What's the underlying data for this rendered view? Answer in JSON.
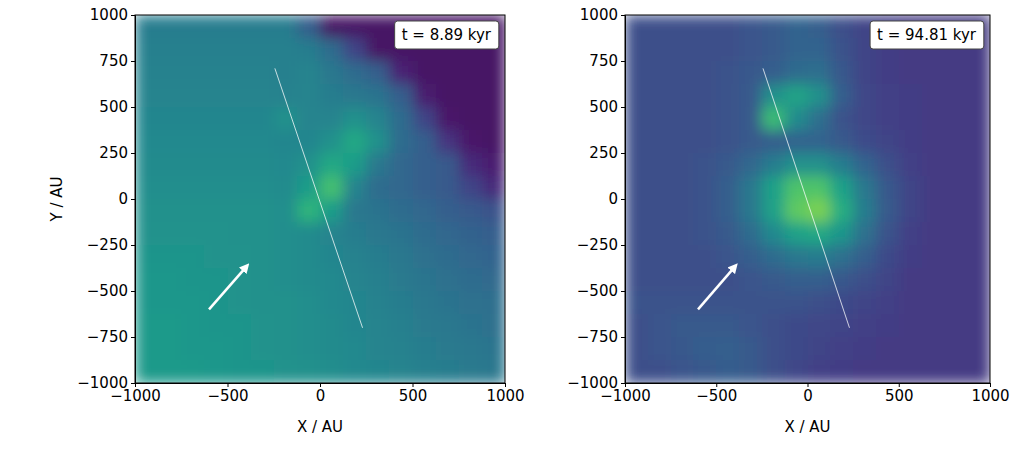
{
  "chart_data": [
    {
      "type": "heatmap",
      "annotation": "t = 8.89 kyr",
      "xlabel": "X / AU",
      "ylabel": "Y / AU",
      "xlim": [
        -1000,
        1000
      ],
      "ylim": [
        -1000,
        1000
      ],
      "xticks": [
        {
          "value": -1000,
          "label": "−1000"
        },
        {
          "value": -500,
          "label": "−500"
        },
        0,
        500,
        1000
      ],
      "yticks": [
        {
          "value": -1000,
          "label": "−1000"
        },
        {
          "value": -750,
          "label": "−750"
        },
        {
          "value": -500,
          "label": "−500"
        },
        {
          "value": -250,
          "label": "−250"
        },
        0,
        250,
        500,
        750,
        1000
      ],
      "x_edges": [
        -1000,
        -875,
        -750,
        -625,
        -500,
        -375,
        -250,
        -125,
        0,
        125,
        250,
        375,
        500,
        625,
        750,
        875,
        1000
      ],
      "y_edges": [
        1000,
        875,
        750,
        625,
        500,
        375,
        250,
        125,
        0,
        -125,
        -250,
        -375,
        -500,
        -625,
        -750,
        -875,
        -1000
      ],
      "zlim": [
        0,
        1
      ],
      "z": [
        [
          0.42,
          0.42,
          0.42,
          0.42,
          0.42,
          0.42,
          0.42,
          0.3,
          0.05,
          0.05,
          0.05,
          0.05,
          0.05,
          0.05,
          0.05,
          0.05
        ],
        [
          0.43,
          0.43,
          0.43,
          0.43,
          0.43,
          0.43,
          0.43,
          0.42,
          0.35,
          0.2,
          0.05,
          0.05,
          0.05,
          0.05,
          0.05,
          0.05
        ],
        [
          0.44,
          0.44,
          0.44,
          0.44,
          0.44,
          0.44,
          0.43,
          0.45,
          0.4,
          0.35,
          0.3,
          0.1,
          0.05,
          0.05,
          0.05,
          0.05
        ],
        [
          0.45,
          0.45,
          0.45,
          0.45,
          0.45,
          0.45,
          0.44,
          0.45,
          0.42,
          0.4,
          0.38,
          0.3,
          0.08,
          0.05,
          0.05,
          0.05
        ],
        [
          0.46,
          0.46,
          0.46,
          0.46,
          0.46,
          0.46,
          0.5,
          0.45,
          0.45,
          0.5,
          0.45,
          0.35,
          0.2,
          0.06,
          0.05,
          0.05
        ],
        [
          0.47,
          0.47,
          0.47,
          0.47,
          0.47,
          0.47,
          0.46,
          0.46,
          0.5,
          0.6,
          0.5,
          0.35,
          0.3,
          0.15,
          0.06,
          0.05
        ],
        [
          0.48,
          0.48,
          0.48,
          0.48,
          0.48,
          0.48,
          0.47,
          0.5,
          0.6,
          0.55,
          0.4,
          0.33,
          0.3,
          0.28,
          0.12,
          0.08
        ],
        [
          0.49,
          0.49,
          0.49,
          0.49,
          0.49,
          0.49,
          0.48,
          0.55,
          0.7,
          0.45,
          0.35,
          0.33,
          0.3,
          0.28,
          0.2,
          0.12
        ],
        [
          0.5,
          0.5,
          0.5,
          0.5,
          0.5,
          0.5,
          0.49,
          0.65,
          0.55,
          0.4,
          0.38,
          0.35,
          0.33,
          0.3,
          0.28,
          0.25
        ],
        [
          0.51,
          0.51,
          0.51,
          0.51,
          0.5,
          0.5,
          0.49,
          0.48,
          0.45,
          0.42,
          0.4,
          0.38,
          0.35,
          0.33,
          0.31,
          0.3
        ],
        [
          0.52,
          0.52,
          0.52,
          0.51,
          0.51,
          0.5,
          0.49,
          0.48,
          0.46,
          0.44,
          0.42,
          0.4,
          0.37,
          0.35,
          0.33,
          0.32
        ],
        [
          0.53,
          0.53,
          0.52,
          0.52,
          0.51,
          0.5,
          0.49,
          0.48,
          0.47,
          0.45,
          0.43,
          0.41,
          0.39,
          0.37,
          0.35,
          0.34
        ],
        [
          0.53,
          0.53,
          0.53,
          0.52,
          0.51,
          0.5,
          0.5,
          0.49,
          0.47,
          0.46,
          0.44,
          0.42,
          0.4,
          0.38,
          0.37,
          0.36
        ],
        [
          0.54,
          0.54,
          0.53,
          0.52,
          0.52,
          0.51,
          0.5,
          0.49,
          0.48,
          0.46,
          0.45,
          0.43,
          0.41,
          0.4,
          0.38,
          0.37
        ],
        [
          0.54,
          0.54,
          0.53,
          0.53,
          0.52,
          0.51,
          0.5,
          0.49,
          0.48,
          0.47,
          0.45,
          0.44,
          0.42,
          0.41,
          0.4,
          0.39
        ],
        [
          0.54,
          0.54,
          0.54,
          0.53,
          0.52,
          0.52,
          0.51,
          0.5,
          0.49,
          0.47,
          0.46,
          0.45,
          0.43,
          0.42,
          0.41,
          0.4
        ]
      ]
    },
    {
      "type": "heatmap",
      "annotation": "t = 94.81 kyr",
      "xlabel": "X / AU",
      "xlim": [
        -1000,
        1000
      ],
      "ylim": [
        -1000,
        1000
      ],
      "xticks": [
        {
          "value": -1000,
          "label": "−1000"
        },
        {
          "value": -500,
          "label": "−500"
        },
        0,
        500,
        1000
      ],
      "yticks": [
        {
          "value": -1000,
          "label": "−1000"
        },
        {
          "value": -750,
          "label": "−750"
        },
        {
          "value": -500,
          "label": "−500"
        },
        {
          "value": -250,
          "label": "−250"
        },
        0,
        250,
        500,
        750,
        1000
      ],
      "x_edges": [
        -1000,
        -875,
        -750,
        -625,
        -500,
        -375,
        -250,
        -125,
        0,
        125,
        250,
        375,
        500,
        625,
        750,
        875,
        1000
      ],
      "y_edges": [
        1000,
        875,
        750,
        625,
        500,
        375,
        250,
        125,
        0,
        -125,
        -250,
        -375,
        -500,
        -625,
        -750,
        -875,
        -1000
      ],
      "zlim": [
        0,
        1
      ],
      "z": [
        [
          0.24,
          0.24,
          0.24,
          0.24,
          0.24,
          0.26,
          0.28,
          0.32,
          0.3,
          0.24,
          0.2,
          0.18,
          0.17,
          0.17,
          0.17,
          0.17
        ],
        [
          0.24,
          0.24,
          0.24,
          0.24,
          0.24,
          0.26,
          0.28,
          0.32,
          0.32,
          0.25,
          0.2,
          0.18,
          0.17,
          0.17,
          0.17,
          0.17
        ],
        [
          0.24,
          0.24,
          0.24,
          0.24,
          0.25,
          0.27,
          0.3,
          0.35,
          0.36,
          0.27,
          0.2,
          0.18,
          0.17,
          0.17,
          0.17,
          0.17
        ],
        [
          0.24,
          0.24,
          0.24,
          0.24,
          0.25,
          0.28,
          0.5,
          0.58,
          0.5,
          0.3,
          0.21,
          0.19,
          0.18,
          0.17,
          0.17,
          0.17
        ],
        [
          0.24,
          0.24,
          0.24,
          0.24,
          0.25,
          0.28,
          0.68,
          0.48,
          0.36,
          0.25,
          0.21,
          0.19,
          0.18,
          0.17,
          0.17,
          0.17
        ],
        [
          0.24,
          0.24,
          0.24,
          0.24,
          0.25,
          0.28,
          0.3,
          0.32,
          0.32,
          0.28,
          0.23,
          0.2,
          0.18,
          0.17,
          0.17,
          0.17
        ],
        [
          0.24,
          0.24,
          0.24,
          0.25,
          0.28,
          0.33,
          0.42,
          0.5,
          0.5,
          0.42,
          0.32,
          0.24,
          0.19,
          0.17,
          0.17,
          0.17
        ],
        [
          0.24,
          0.24,
          0.24,
          0.25,
          0.3,
          0.4,
          0.57,
          0.72,
          0.72,
          0.57,
          0.4,
          0.27,
          0.2,
          0.17,
          0.17,
          0.17
        ],
        [
          0.24,
          0.24,
          0.24,
          0.25,
          0.3,
          0.4,
          0.57,
          0.75,
          0.8,
          0.62,
          0.42,
          0.28,
          0.2,
          0.17,
          0.17,
          0.17
        ],
        [
          0.24,
          0.24,
          0.24,
          0.25,
          0.28,
          0.35,
          0.47,
          0.57,
          0.6,
          0.52,
          0.37,
          0.25,
          0.19,
          0.17,
          0.17,
          0.17
        ],
        [
          0.24,
          0.24,
          0.24,
          0.24,
          0.26,
          0.3,
          0.35,
          0.4,
          0.42,
          0.37,
          0.3,
          0.22,
          0.18,
          0.17,
          0.17,
          0.17
        ],
        [
          0.24,
          0.24,
          0.24,
          0.24,
          0.24,
          0.26,
          0.28,
          0.3,
          0.3,
          0.27,
          0.24,
          0.2,
          0.17,
          0.17,
          0.17,
          0.17
        ],
        [
          0.25,
          0.25,
          0.25,
          0.25,
          0.25,
          0.25,
          0.25,
          0.25,
          0.24,
          0.22,
          0.2,
          0.19,
          0.17,
          0.17,
          0.17,
          0.17
        ],
        [
          0.24,
          0.26,
          0.28,
          0.28,
          0.28,
          0.26,
          0.24,
          0.22,
          0.21,
          0.2,
          0.19,
          0.18,
          0.17,
          0.17,
          0.17,
          0.17
        ],
        [
          0.24,
          0.26,
          0.27,
          0.29,
          0.3,
          0.28,
          0.24,
          0.22,
          0.2,
          0.19,
          0.18,
          0.17,
          0.17,
          0.17,
          0.17,
          0.17
        ],
        [
          0.24,
          0.24,
          0.26,
          0.27,
          0.29,
          0.28,
          0.24,
          0.21,
          0.19,
          0.18,
          0.17,
          0.17,
          0.17,
          0.17,
          0.17,
          0.17
        ]
      ]
    }
  ]
}
